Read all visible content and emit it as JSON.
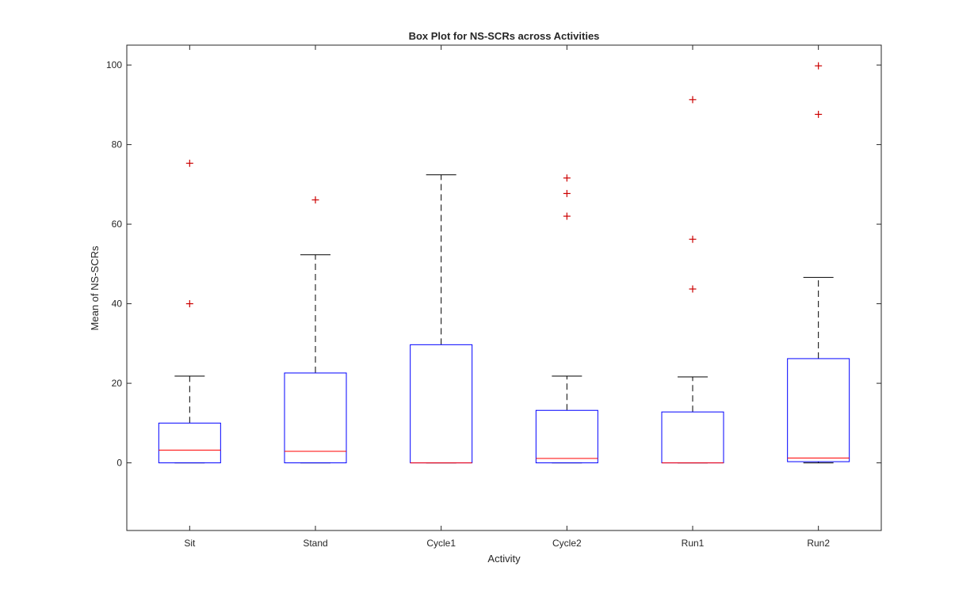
{
  "chart_data": {
    "type": "boxplot",
    "title": "Box Plot for NS-SCRs across Activities",
    "xlabel": "Activity",
    "ylabel": "Mean of NS-SCRs",
    "ylim": [
      -17,
      105
    ],
    "yticks": [
      0,
      20,
      40,
      60,
      80,
      100
    ],
    "grid": false,
    "categories": [
      "Sit",
      "Stand",
      "Cycle1",
      "Cycle2",
      "Run1",
      "Run2"
    ],
    "boxes": [
      {
        "category": "Sit",
        "whisker_low": 0,
        "q1": 0,
        "median": 3.2,
        "q3": 10.0,
        "whisker_high": 21.8,
        "outliers": [
          40.0,
          75.3
        ]
      },
      {
        "category": "Stand",
        "whisker_low": 0,
        "q1": 0,
        "median": 2.9,
        "q3": 22.6,
        "whisker_high": 52.3,
        "outliers": [
          66.1
        ]
      },
      {
        "category": "Cycle1",
        "whisker_low": 0,
        "q1": 0,
        "median": 0,
        "q3": 29.7,
        "whisker_high": 72.4,
        "outliers": []
      },
      {
        "category": "Cycle2",
        "whisker_low": 0,
        "q1": 0,
        "median": 1.1,
        "q3": 13.2,
        "whisker_high": 21.8,
        "outliers": [
          62.0,
          67.7,
          71.6
        ]
      },
      {
        "category": "Run1",
        "whisker_low": 0,
        "q1": 0,
        "median": 0,
        "q3": 12.8,
        "whisker_high": 21.6,
        "outliers": [
          43.7,
          56.2,
          91.3
        ]
      },
      {
        "category": "Run2",
        "whisker_low": 0,
        "q1": 0.3,
        "median": 1.2,
        "q3": 26.2,
        "whisker_high": 46.6,
        "outliers": [
          87.6,
          99.8
        ]
      }
    ]
  },
  "colors": {
    "box": "#0000ff",
    "median": "#ff0000",
    "outlier": "#cc0000",
    "whisker": "#000000",
    "axis": "#262626"
  }
}
